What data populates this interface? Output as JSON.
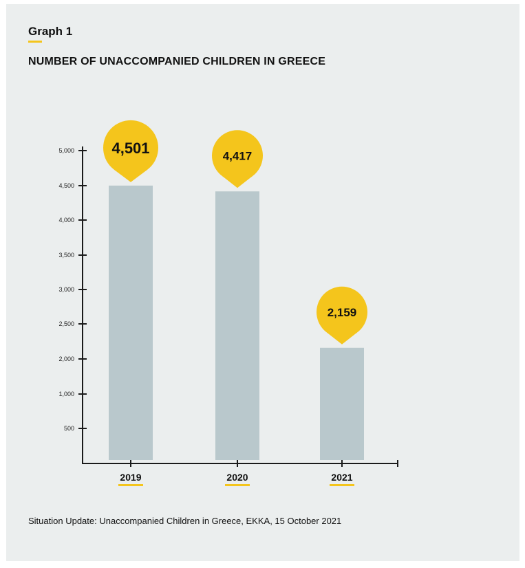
{
  "heading": {
    "graph_label": "Graph 1",
    "title": "NUMBER OF UNACCOMPANIED CHILDREN IN GREECE"
  },
  "colors": {
    "bar": "#b9c8cc",
    "bubble": "#f4c51c",
    "accent_underline": "#f4c51c",
    "axis": "#1a1a1a",
    "background": "#ebeeee"
  },
  "chart_data": {
    "type": "bar",
    "categories": [
      "2019",
      "2020",
      "2021"
    ],
    "values": [
      4501,
      4417,
      2159
    ],
    "data_labels": [
      "4,501",
      "4,417",
      "2,159"
    ],
    "y_ticks": [
      500,
      1000,
      2000,
      2500,
      3000,
      3500,
      4000,
      4500,
      5000
    ],
    "y_tick_labels": [
      "500",
      "1,000",
      "2,000",
      "2,500",
      "3,000",
      "3,500",
      "4,000",
      "4,500",
      "5,000"
    ],
    "title": "NUMBER OF UNACCOMPANIED CHILDREN IN GREECE",
    "xlabel": "",
    "ylabel": "",
    "grid": false,
    "legend": "none"
  },
  "source": "Situation Update: Unaccompanied Children in Greece, EKKA, 15 October 2021"
}
